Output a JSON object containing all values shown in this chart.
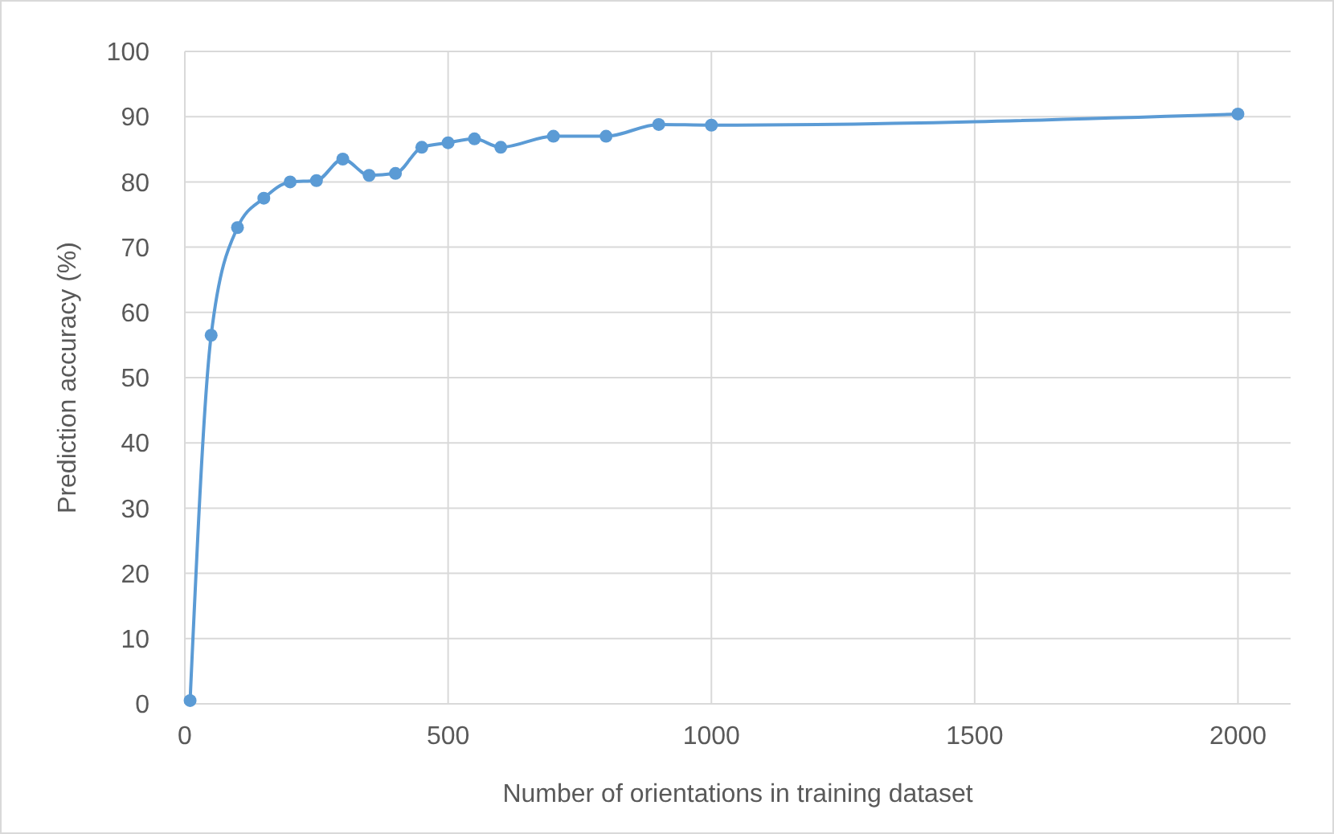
{
  "chart_data": {
    "type": "line",
    "xlabel": "Number of orientations in training dataset",
    "ylabel": "Prediction accuracy (%)",
    "x": [
      10,
      50,
      100,
      150,
      200,
      250,
      300,
      350,
      400,
      450,
      500,
      550,
      600,
      700,
      800,
      900,
      1000,
      2000
    ],
    "series": [
      {
        "color": "#5b9bd5",
        "values": [
          0.5,
          56.5,
          73,
          77.5,
          80,
          80.2,
          83.5,
          81,
          81.3,
          85.3,
          86,
          86.6,
          85.3,
          87,
          87,
          88.8,
          88.7,
          90.4
        ]
      }
    ],
    "xlim": [
      0,
      2100
    ],
    "xticks": [
      0,
      500,
      1000,
      1500,
      2000
    ],
    "ylim": [
      0,
      100
    ],
    "yticks": [
      0,
      10,
      20,
      30,
      40,
      50,
      60,
      70,
      80,
      90,
      100
    ],
    "grid": true,
    "marker": "circle",
    "line_style": "solid"
  }
}
